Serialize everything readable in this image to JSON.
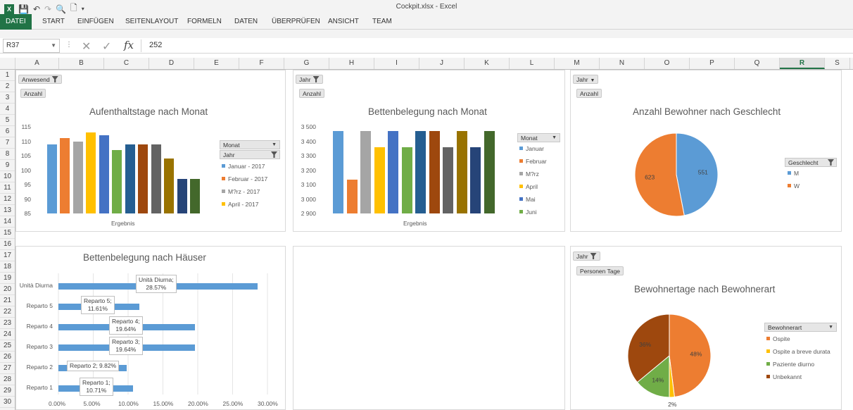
{
  "window": {
    "title": "Cockpit.xlsx - Excel"
  },
  "ribbon": {
    "tabs": [
      "DATEI",
      "START",
      "EINFÜGEN",
      "SEITENLAYOUT",
      "FORMELN",
      "DATEN",
      "ÜBERPRÜFEN",
      "ANSICHT",
      "TEAM"
    ]
  },
  "formula_bar": {
    "name_box": "R37",
    "fx": "fx",
    "value": "252"
  },
  "columns": [
    "A",
    "B",
    "C",
    "D",
    "E",
    "F",
    "G",
    "H",
    "I",
    "J",
    "K",
    "L",
    "M",
    "N",
    "O",
    "P",
    "Q",
    "R",
    "S"
  ],
  "selected_column": "R",
  "rows": [
    "1",
    "2",
    "3",
    "4",
    "5",
    "6",
    "7",
    "8",
    "9",
    "10",
    "11",
    "12",
    "13",
    "14",
    "15",
    "16",
    "17",
    "18",
    "19",
    "20",
    "21",
    "22",
    "23",
    "24",
    "25",
    "26",
    "27",
    "28",
    "29",
    "30"
  ],
  "colors": {
    "accent": "#217346"
  },
  "chart_data": [
    {
      "type": "bar",
      "title": "Aufenthaltstage nach Monat",
      "filter_buttons": [
        "Anwesend",
        "Anzahl"
      ],
      "xlabel": "Ergebnis",
      "ylim": [
        85,
        115
      ],
      "yticks": [
        "115",
        "110",
        "105",
        "100",
        "95",
        "90",
        "85"
      ],
      "series": [
        {
          "name": "Januar - 2017",
          "value": 109,
          "color": "#5b9bd5"
        },
        {
          "name": "Februar - 2017",
          "value": 111,
          "color": "#ed7d31"
        },
        {
          "name": "M?rz - 2017",
          "value": 110,
          "color": "#a5a5a5"
        },
        {
          "name": "April - 2017",
          "value": 113,
          "color": "#ffc000"
        },
        {
          "name": "",
          "value": 112,
          "color": "#4472c4"
        },
        {
          "name": "",
          "value": 107,
          "color": "#70ad47"
        },
        {
          "name": "",
          "value": 109,
          "color": "#255e91"
        },
        {
          "name": "",
          "value": 109,
          "color": "#9e480e"
        },
        {
          "name": "",
          "value": 109,
          "color": "#636363"
        },
        {
          "name": "",
          "value": 104,
          "color": "#997300"
        },
        {
          "name": "",
          "value": 97,
          "color": "#264478"
        },
        {
          "name": "",
          "value": 97,
          "color": "#43682b"
        }
      ],
      "legend_buttons": [
        "Monat",
        "Jahr"
      ]
    },
    {
      "type": "bar",
      "title": "Bettenbelegung nach Monat",
      "filter_buttons": [
        "Jahr",
        "Anzahl"
      ],
      "xlabel": "Ergebnis",
      "ylim": [
        2900,
        3500
      ],
      "yticks": [
        "3 500",
        "3 400",
        "3 300",
        "3 200",
        "3 100",
        "3 000",
        "2 900"
      ],
      "series": [
        {
          "name": "Januar",
          "value": 3472,
          "color": "#5b9bd5"
        },
        {
          "name": "Februar",
          "value": 3136,
          "color": "#ed7d31"
        },
        {
          "name": "M?rz",
          "value": 3472,
          "color": "#a5a5a5"
        },
        {
          "name": "April",
          "value": 3360,
          "color": "#ffc000"
        },
        {
          "name": "Mai",
          "value": 3472,
          "color": "#4472c4"
        },
        {
          "name": "Juni",
          "value": 3360,
          "color": "#70ad47"
        },
        {
          "name": "",
          "value": 3472,
          "color": "#255e91"
        },
        {
          "name": "",
          "value": 3472,
          "color": "#9e480e"
        },
        {
          "name": "",
          "value": 3360,
          "color": "#636363"
        },
        {
          "name": "",
          "value": 3472,
          "color": "#997300"
        },
        {
          "name": "",
          "value": 3360,
          "color": "#264478"
        },
        {
          "name": "",
          "value": 3472,
          "color": "#43682b"
        }
      ],
      "legend_buttons": [
        "Monat"
      ]
    },
    {
      "type": "pie",
      "title": "Anzahl Bewohner nach Geschlecht",
      "filter_buttons": [
        "Jahr",
        "Anzahl"
      ],
      "slices": [
        {
          "name": "M",
          "value": 551,
          "label": "551",
          "color": "#5b9bd5"
        },
        {
          "name": "W",
          "value": 623,
          "label": "623",
          "color": "#ed7d31"
        }
      ],
      "legend_buttons": [
        "Geschlecht"
      ]
    },
    {
      "type": "bar",
      "orientation": "horizontal",
      "title": "Bettenbelegung nach Häuser",
      "categories": [
        "Unità Diurna",
        "Reparto 5",
        "Reparto 4",
        "Reparto 3",
        "Reparto 2",
        "Reparto 1"
      ],
      "values": [
        28.57,
        11.61,
        19.64,
        19.64,
        9.82,
        10.71
      ],
      "data_labels": [
        "Unità Diurna;|28.57%",
        "Reparto 5;|11.61%",
        "Reparto 4;|19.64%",
        "Reparto 3;|19.64%",
        "Reparto 2; 9.82%",
        "Reparto 1;|10.71%"
      ],
      "xlim": [
        0,
        30
      ],
      "xticks": [
        "0.00%",
        "5.00%",
        "10.00%",
        "15.00%",
        "20.00%",
        "25.00%",
        "30.00%"
      ],
      "color": "#5b9bd5"
    },
    {
      "type": "pie",
      "title": "Bewohnertage nach Bewohnerart",
      "filter_buttons": [
        "Jahr",
        "Personen Tage"
      ],
      "slices": [
        {
          "name": "Ospite",
          "value": 48,
          "label": "48%",
          "color": "#ed7d31"
        },
        {
          "name": "Ospite a breve durata",
          "value": 2,
          "label": "2%",
          "color": "#ffc000"
        },
        {
          "name": "Paziente diurno",
          "value": 14,
          "label": "14%",
          "color": "#70ad47"
        },
        {
          "name": "Unbekannt",
          "value": 36,
          "label": "36%",
          "color": "#9e480e"
        }
      ],
      "legend_buttons": [
        "Bewohnerart"
      ]
    }
  ]
}
